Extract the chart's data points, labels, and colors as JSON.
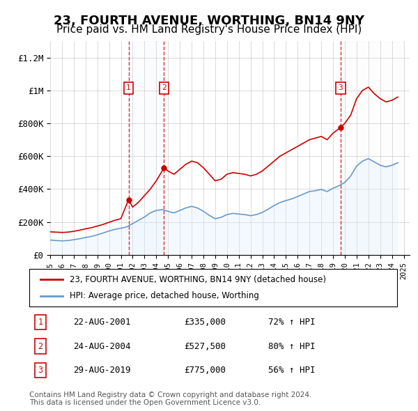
{
  "title": "23, FOURTH AVENUE, WORTHING, BN14 9NY",
  "subtitle": "Price paid vs. HM Land Registry's House Price Index (HPI)",
  "title_fontsize": 13,
  "subtitle_fontsize": 11,
  "red_line_color": "#cc0000",
  "blue_line_color": "#6699cc",
  "blue_fill_color": "#ddeeff",
  "marker_color": "#cc0000",
  "sale_marker_box_color": "#cc0000",
  "ylim": [
    0,
    1300000
  ],
  "yticks": [
    0,
    200000,
    400000,
    600000,
    800000,
    1000000,
    1200000
  ],
  "ytick_labels": [
    "£0",
    "£200K",
    "£400K",
    "£600K",
    "£800K",
    "£1M",
    "£1.2M"
  ],
  "xlabel_start_year": 1995,
  "xlabel_end_year": 2025,
  "sales": [
    {
      "date_num": 2001.65,
      "price": 335000,
      "label": "1",
      "hpi_pct": "72%"
    },
    {
      "date_num": 2004.65,
      "price": 527500,
      "label": "2",
      "hpi_pct": "80%"
    },
    {
      "date_num": 2019.65,
      "price": 775000,
      "label": "3",
      "hpi_pct": "56%"
    }
  ],
  "sale_dates": [
    "22-AUG-2001",
    "24-AUG-2004",
    "29-AUG-2019"
  ],
  "sale_prices": [
    "£335,000",
    "£527,500",
    "£775,000"
  ],
  "sale_hpi": [
    "72% ↑ HPI",
    "80% ↑ HPI",
    "56% ↑ HPI"
  ],
  "legend_red_label": "23, FOURTH AVENUE, WORTHING, BN14 9NY (detached house)",
  "legend_blue_label": "HPI: Average price, detached house, Worthing",
  "footnote": "Contains HM Land Registry data © Crown copyright and database right 2024.\nThis data is licensed under the Open Government Licence v3.0.",
  "hpi_red_x": [
    1995.0,
    1995.5,
    1996.0,
    1996.5,
    1997.0,
    1997.5,
    1998.0,
    1998.5,
    1999.0,
    1999.5,
    2000.0,
    2000.5,
    2001.0,
    2001.65,
    2002.0,
    2002.5,
    2003.0,
    2003.5,
    2004.0,
    2004.65,
    2005.0,
    2005.5,
    2006.0,
    2006.5,
    2007.0,
    2007.5,
    2008.0,
    2008.5,
    2009.0,
    2009.5,
    2010.0,
    2010.5,
    2011.0,
    2011.5,
    2012.0,
    2012.5,
    2013.0,
    2013.5,
    2014.0,
    2014.5,
    2015.0,
    2015.5,
    2016.0,
    2016.5,
    2017.0,
    2017.5,
    2018.0,
    2018.5,
    2019.0,
    2019.65,
    2020.0,
    2020.5,
    2021.0,
    2021.5,
    2022.0,
    2022.5,
    2023.0,
    2023.5,
    2024.0,
    2024.5
  ],
  "hpi_red_y": [
    140000,
    138000,
    136000,
    138000,
    143000,
    150000,
    158000,
    165000,
    175000,
    185000,
    198000,
    210000,
    220000,
    335000,
    290000,
    320000,
    360000,
    400000,
    450000,
    527500,
    510000,
    490000,
    520000,
    550000,
    570000,
    560000,
    530000,
    490000,
    450000,
    460000,
    490000,
    500000,
    495000,
    490000,
    480000,
    490000,
    510000,
    540000,
    570000,
    600000,
    620000,
    640000,
    660000,
    680000,
    700000,
    710000,
    720000,
    700000,
    740000,
    775000,
    800000,
    850000,
    950000,
    1000000,
    1020000,
    980000,
    950000,
    930000,
    940000,
    960000
  ],
  "hpi_blue_x": [
    1995.0,
    1995.5,
    1996.0,
    1996.5,
    1997.0,
    1997.5,
    1998.0,
    1998.5,
    1999.0,
    1999.5,
    2000.0,
    2000.5,
    2001.0,
    2001.5,
    2002.0,
    2002.5,
    2003.0,
    2003.5,
    2004.0,
    2004.5,
    2005.0,
    2005.5,
    2006.0,
    2006.5,
    2007.0,
    2007.5,
    2008.0,
    2008.5,
    2009.0,
    2009.5,
    2010.0,
    2010.5,
    2011.0,
    2011.5,
    2012.0,
    2012.5,
    2013.0,
    2013.5,
    2014.0,
    2014.5,
    2015.0,
    2015.5,
    2016.0,
    2016.5,
    2017.0,
    2017.5,
    2018.0,
    2018.5,
    2019.0,
    2019.5,
    2020.0,
    2020.5,
    2021.0,
    2021.5,
    2022.0,
    2022.5,
    2023.0,
    2023.5,
    2024.0,
    2024.5
  ],
  "hpi_blue_y": [
    90000,
    87000,
    85000,
    87000,
    92000,
    98000,
    105000,
    112000,
    122000,
    133000,
    145000,
    155000,
    162000,
    170000,
    190000,
    210000,
    230000,
    255000,
    270000,
    275000,
    265000,
    255000,
    270000,
    285000,
    295000,
    285000,
    265000,
    240000,
    220000,
    228000,
    245000,
    252000,
    248000,
    245000,
    238000,
    245000,
    258000,
    278000,
    300000,
    318000,
    330000,
    340000,
    355000,
    370000,
    385000,
    390000,
    398000,
    385000,
    405000,
    420000,
    440000,
    480000,
    540000,
    570000,
    585000,
    565000,
    545000,
    535000,
    545000,
    560000
  ]
}
